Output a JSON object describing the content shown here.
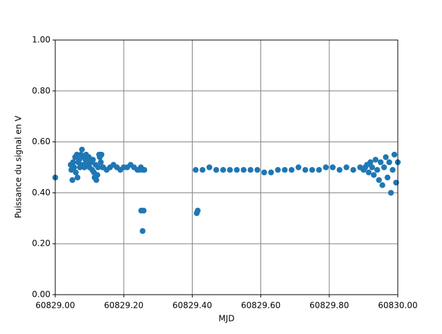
{
  "chart_data": {
    "type": "scatter",
    "xlabel": "MJD",
    "ylabel": "Puissance du signal en V",
    "color": "#1f77b4",
    "grid": true,
    "xlim": [
      60829.0,
      60830.0
    ],
    "xticks": [
      {
        "value": 60829.0,
        "label": "60829.00"
      },
      {
        "value": 60829.2,
        "label": "60829.20"
      },
      {
        "value": 60829.4,
        "label": "60829.40"
      },
      {
        "value": 60829.6,
        "label": "60829.60"
      },
      {
        "value": 60829.8,
        "label": "60829.80"
      },
      {
        "value": 60830.0,
        "label": "60830.00"
      }
    ],
    "ylim": [
      0,
      1
    ],
    "yticks": [
      {
        "value": 0,
        "label": "0.00"
      },
      {
        "value": 0.2,
        "label": "0.20"
      },
      {
        "value": 0.4,
        "label": "0.40"
      },
      {
        "value": 0.6,
        "label": "0.60"
      },
      {
        "value": 0.8,
        "label": "0.80"
      },
      {
        "value": 1,
        "label": "1.00"
      }
    ],
    "x": [
      60829.0,
      60829.045,
      60829.047,
      60829.05,
      60829.052,
      60829.055,
      60829.058,
      60829.06,
      60829.063,
      60829.065,
      60829.067,
      60829.07,
      60829.072,
      60829.075,
      60829.078,
      60829.08,
      60829.083,
      60829.085,
      60829.088,
      60829.09,
      60829.093,
      60829.095,
      60829.098,
      60829.1,
      60829.103,
      60829.105,
      60829.108,
      60829.11,
      60829.113,
      60829.115,
      60829.118,
      60829.12,
      60829.123,
      60829.125,
      60829.128,
      60829.13,
      60829.133,
      60829.135,
      60829.138,
      60829.14,
      60829.15,
      60829.16,
      60829.17,
      60829.18,
      60829.19,
      60829.2,
      60829.21,
      60829.22,
      60829.23,
      60829.24,
      60829.245,
      60829.25,
      60829.255,
      60829.26,
      60829.251,
      60829.258,
      60829.255,
      60829.413,
      60829.416,
      60829.41,
      60829.43,
      60829.45,
      60829.47,
      60829.49,
      60829.51,
      60829.53,
      60829.55,
      60829.57,
      60829.59,
      60829.61,
      60829.63,
      60829.65,
      60829.67,
      60829.69,
      60829.71,
      60829.73,
      60829.75,
      60829.77,
      60829.79,
      60829.81,
      60829.83,
      60829.85,
      60829.87,
      60829.89,
      60829.9,
      60829.905,
      60829.91,
      60829.915,
      60829.92,
      60829.925,
      60829.93,
      60829.935,
      60829.94,
      60829.945,
      60829.95,
      60829.955,
      60829.96,
      60829.965,
      60829.97,
      60829.975,
      60829.98,
      60829.985,
      60829.99,
      60829.995,
      60830.0
    ],
    "values": [
      0.46,
      0.51,
      0.49,
      0.45,
      0.52,
      0.5,
      0.54,
      0.48,
      0.55,
      0.46,
      0.52,
      0.53,
      0.5,
      0.55,
      0.57,
      0.51,
      0.54,
      0.5,
      0.53,
      0.55,
      0.52,
      0.51,
      0.54,
      0.5,
      0.53,
      0.52,
      0.49,
      0.53,
      0.48,
      0.46,
      0.51,
      0.45,
      0.47,
      0.5,
      0.55,
      0.54,
      0.52,
      0.55,
      0.5,
      0.5,
      0.49,
      0.5,
      0.51,
      0.5,
      0.49,
      0.5,
      0.5,
      0.51,
      0.5,
      0.49,
      0.49,
      0.5,
      0.49,
      0.49,
      0.33,
      0.33,
      0.25,
      0.32,
      0.33,
      0.49,
      0.49,
      0.5,
      0.49,
      0.49,
      0.49,
      0.49,
      0.49,
      0.49,
      0.49,
      0.48,
      0.48,
      0.49,
      0.49,
      0.49,
      0.5,
      0.49,
      0.49,
      0.49,
      0.5,
      0.5,
      0.49,
      0.5,
      0.49,
      0.5,
      0.49,
      0.5,
      0.51,
      0.48,
      0.52,
      0.5,
      0.47,
      0.53,
      0.49,
      0.45,
      0.52,
      0.43,
      0.5,
      0.54,
      0.46,
      0.52,
      0.4,
      0.49,
      0.55,
      0.44,
      0.52
    ]
  }
}
